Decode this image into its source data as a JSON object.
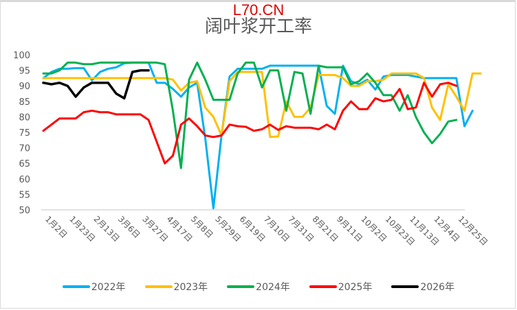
{
  "watermark": "L70.CN",
  "title": "阔叶浆开工率",
  "chart_data": {
    "type": "line",
    "title": "阔叶浆开工率",
    "xlabel": "",
    "ylabel": "",
    "ylim": [
      50,
      100
    ],
    "yticks": [
      50,
      55,
      60,
      65,
      70,
      75,
      80,
      85,
      90,
      95,
      100
    ],
    "grid": false,
    "legend_position": "bottom",
    "x_tick_labels": [
      "1月2日",
      "1月23日",
      "2月13日",
      "3月6日",
      "3月27日",
      "4月17日",
      "5月8日",
      "5月29日",
      "6月19日",
      "7月10日",
      "7月31日",
      "8月21日",
      "9月11日",
      "10月2日",
      "10月23日",
      "11月13日",
      "12月4日",
      "12月25日"
    ],
    "x_weeks": 53,
    "series": [
      {
        "name": "2022年",
        "color": "#00b0f0",
        "values": [
          92.5,
          94.5,
          95.5,
          95.5,
          95.7,
          95.7,
          91.8,
          94.5,
          95.5,
          96.0,
          97.3,
          97.5,
          97.5,
          97.5,
          91.0,
          91.0,
          89.0,
          86.5,
          89.5,
          91.0,
          73.0,
          50.5,
          74.0,
          93.0,
          95.5,
          95.5,
          95.5,
          95.5,
          96.5,
          96.5,
          96.5,
          96.5,
          96.5,
          96.5,
          96.5,
          83.5,
          81.0,
          96.5,
          91.5,
          90.5,
          92.0,
          88.8,
          93.0,
          93.5,
          93.5,
          93.5,
          93.0,
          92.5,
          92.5,
          92.5,
          92.5,
          92.5,
          77.0,
          82.0
        ]
      },
      {
        "name": "2023年",
        "color": "#ffc000",
        "values": [
          92.5,
          92.5,
          92.5,
          92.5,
          92.5,
          92.5,
          92.5,
          92.5,
          92.5,
          92.5,
          92.5,
          92.5,
          92.5,
          92.5,
          92.5,
          92.5,
          92.0,
          88.5,
          91.0,
          91.5,
          83.0,
          80.0,
          74.0,
          91.5,
          94.5,
          94.5,
          94.5,
          94.5,
          73.5,
          73.7,
          85.0,
          80.0,
          80.0,
          83.0,
          93.5,
          93.5,
          93.5,
          92.5,
          90.0,
          90.0,
          91.5,
          91.5,
          92.0,
          94.0,
          94.0,
          94.0,
          94.0,
          92.5,
          83.0,
          79.0,
          90.5,
          86.5,
          82.0,
          94.0,
          94.0
        ]
      },
      {
        "name": "2024年",
        "color": "#00b050",
        "values": [
          94.0,
          94.0,
          95.0,
          97.5,
          97.5,
          97.0,
          97.0,
          97.5,
          97.5,
          97.5,
          97.5,
          97.5,
          97.5,
          97.5,
          97.5,
          97.0,
          82.0,
          63.5,
          92.0,
          97.5,
          92.0,
          85.5,
          85.5,
          85.5,
          94.0,
          97.5,
          97.5,
          89.5,
          95.0,
          95.0,
          82.0,
          94.5,
          94.0,
          81.0,
          96.5,
          96.0,
          96.0,
          96.0,
          90.5,
          91.5,
          94.0,
          91.0,
          87.0,
          87.0,
          82.0,
          87.0,
          80.0,
          75.0,
          71.5,
          74.5,
          78.5,
          79.0
        ]
      },
      {
        "name": "2025年",
        "color": "#ff0000",
        "values": [
          75.5,
          77.5,
          79.5,
          79.5,
          79.5,
          81.5,
          82.0,
          81.5,
          81.5,
          80.8,
          80.8,
          80.8,
          80.8,
          79.0,
          72.0,
          65.0,
          67.5,
          77.5,
          79.5,
          77.0,
          74.0,
          73.5,
          74.0,
          77.5,
          77.0,
          76.8,
          75.5,
          76.0,
          77.5,
          75.8,
          77.0,
          76.5,
          76.5,
          76.5,
          76.0,
          77.5,
          76.0,
          82.0,
          85.0,
          82.5,
          82.5,
          86.0,
          85.0,
          85.5,
          89.0,
          82.5,
          83.0,
          91.0,
          86.5,
          90.5,
          91.0,
          90.0
        ]
      },
      {
        "name": "2026年",
        "color": "#000000",
        "values": [
          91.0,
          90.5,
          91.0,
          90.0,
          86.5,
          89.5,
          91.0,
          91.0,
          91.0,
          87.5,
          86.0,
          94.5,
          95.0,
          95.0
        ]
      }
    ]
  },
  "legend": [
    {
      "label": "2022年",
      "color": "#00b0f0"
    },
    {
      "label": "2023年",
      "color": "#ffc000"
    },
    {
      "label": "2024年",
      "color": "#00b050"
    },
    {
      "label": "2025年",
      "color": "#ff0000"
    },
    {
      "label": "2026年",
      "color": "#000000"
    }
  ]
}
